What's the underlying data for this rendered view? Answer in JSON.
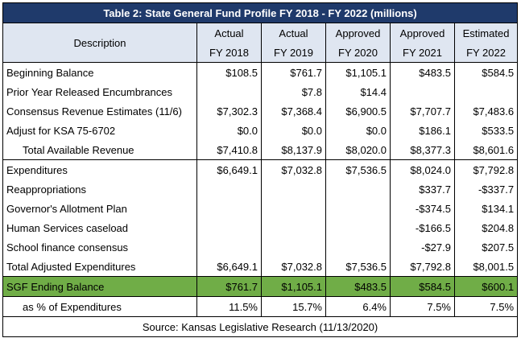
{
  "title": "Table 2: State General Fund Profile FY 2018 - FY 2022 (millions)",
  "header": {
    "description": "Description",
    "columns": [
      {
        "top": "Actual",
        "bottom": "FY 2018"
      },
      {
        "top": "Actual",
        "bottom": "FY 2019"
      },
      {
        "top": "Approved",
        "bottom": "FY 2020"
      },
      {
        "top": "Approved",
        "bottom": "FY 2021"
      },
      {
        "top": "Estimated",
        "bottom": "FY 2022"
      }
    ]
  },
  "rows": [
    {
      "label": "Beginning Balance",
      "values": [
        "$108.5",
        "$761.7",
        "$1,105.1",
        "$483.5",
        "$584.5"
      ]
    },
    {
      "label": "Prior Year Released Encumbrances",
      "values": [
        "",
        "$7.8",
        "$14.4",
        "",
        ""
      ]
    },
    {
      "label": "Consensus Revenue Estimates (11/6)",
      "values": [
        "$7,302.3",
        "$7,368.4",
        "$6,900.5",
        "$7,707.7",
        "$7,483.6"
      ]
    },
    {
      "label": "Adjust for KSA 75-6702",
      "values": [
        "$0.0",
        "$0.0",
        "$0.0",
        "$186.1",
        "$533.5"
      ]
    },
    {
      "label": "Total Available Revenue",
      "values": [
        "$7,410.8",
        "$8,137.9",
        "$8,020.0",
        "$8,377.3",
        "$8,601.6"
      ]
    },
    {
      "label": "Expenditures",
      "values": [
        "$6,649.1",
        "$7,032.8",
        "$7,536.5",
        "$8,024.0",
        "$7,792.8"
      ]
    },
    {
      "label": "Reappropriations",
      "values": [
        "",
        "",
        "",
        "$337.7",
        "-$337.7"
      ]
    },
    {
      "label": "Governor's Allotment Plan",
      "values": [
        "",
        "",
        "",
        "-$374.5",
        "$134.1"
      ]
    },
    {
      "label": "Human Services caseload",
      "values": [
        "",
        "",
        "",
        "-$166.5",
        "$204.8"
      ]
    },
    {
      "label": "School finance consensus",
      "values": [
        "",
        "",
        "",
        "-$27.9",
        "$207.5"
      ]
    },
    {
      "label": "Total Adjusted Expenditures",
      "values": [
        "$6,649.1",
        "$7,032.8",
        "$7,536.5",
        "$7,792.8",
        "$8,001.5"
      ]
    },
    {
      "label": "SGF Ending Balance",
      "values": [
        "$761.7",
        "$1,105.1",
        "$483.5",
        "$584.5",
        "$600.1"
      ]
    },
    {
      "label": "as % of Expenditures",
      "values": [
        "11.5%",
        "15.7%",
        "6.4%",
        "7.5%",
        "7.5%"
      ]
    }
  ],
  "source": "Source: Kansas Legislative Research (11/13/2020)",
  "colors": {
    "title_bg": "#1f3a6b",
    "header_bg": "#dfe6f1",
    "highlight": "#70ad47"
  }
}
